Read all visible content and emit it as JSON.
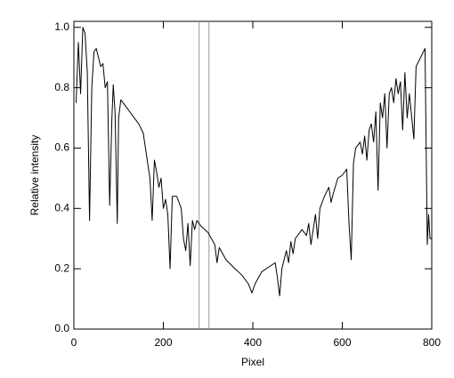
{
  "chart_data": {
    "type": "line",
    "xlabel": "Pixel",
    "ylabel": "Relative intensity",
    "x": [
      5,
      10,
      15,
      20,
      25,
      30,
      35,
      40,
      45,
      50,
      55,
      60,
      65,
      70,
      75,
      80,
      85,
      88,
      92,
      97,
      100,
      105,
      115,
      130,
      145,
      155,
      160,
      165,
      170,
      175,
      180,
      185,
      190,
      195,
      200,
      205,
      210,
      215,
      220,
      230,
      240,
      245,
      250,
      255,
      260,
      265,
      270,
      275,
      285,
      300,
      315,
      320,
      325,
      340,
      360,
      375,
      390,
      398,
      405,
      420,
      440,
      450,
      455,
      460,
      465,
      475,
      480,
      485,
      490,
      495,
      505,
      510,
      520,
      525,
      530,
      540,
      545,
      550,
      560,
      570,
      575,
      580,
      590,
      600,
      610,
      615,
      620,
      625,
      630,
      640,
      645,
      650,
      655,
      660,
      665,
      670,
      675,
      680,
      685,
      690,
      695,
      700,
      705,
      710,
      715,
      720,
      725,
      730,
      735,
      740,
      745,
      750,
      760,
      765,
      775,
      785,
      790,
      793,
      796,
      800
    ],
    "values": [
      0.75,
      0.95,
      0.78,
      1.0,
      0.98,
      0.85,
      0.36,
      0.8,
      0.92,
      0.93,
      0.9,
      0.87,
      0.88,
      0.8,
      0.82,
      0.41,
      0.7,
      0.81,
      0.72,
      0.35,
      0.7,
      0.76,
      0.74,
      0.71,
      0.68,
      0.65,
      0.6,
      0.55,
      0.5,
      0.36,
      0.56,
      0.52,
      0.47,
      0.5,
      0.4,
      0.43,
      0.38,
      0.2,
      0.44,
      0.44,
      0.4,
      0.3,
      0.26,
      0.35,
      0.21,
      0.36,
      0.33,
      0.36,
      0.34,
      0.32,
      0.28,
      0.22,
      0.27,
      0.23,
      0.2,
      0.18,
      0.15,
      0.12,
      0.15,
      0.19,
      0.21,
      0.22,
      0.17,
      0.11,
      0.2,
      0.26,
      0.22,
      0.29,
      0.25,
      0.3,
      0.32,
      0.33,
      0.31,
      0.35,
      0.28,
      0.38,
      0.3,
      0.4,
      0.44,
      0.47,
      0.42,
      0.45,
      0.5,
      0.51,
      0.53,
      0.35,
      0.23,
      0.55,
      0.6,
      0.62,
      0.58,
      0.64,
      0.56,
      0.66,
      0.68,
      0.62,
      0.72,
      0.46,
      0.75,
      0.7,
      0.78,
      0.6,
      0.78,
      0.8,
      0.75,
      0.83,
      0.78,
      0.82,
      0.66,
      0.85,
      0.7,
      0.78,
      0.63,
      0.87,
      0.9,
      0.93,
      0.28,
      0.38,
      0.3,
      0.3
    ],
    "color": "#000000",
    "vlines": [
      280,
      302
    ],
    "vline_color": "#999999",
    "xlim": [
      0,
      800
    ],
    "xticks": [
      0,
      200,
      400,
      600,
      800
    ],
    "ylim": [
      0,
      1.02
    ],
    "yticks": [
      {
        "value": 0,
        "label": "0.0"
      },
      0.2,
      0.4,
      0.6,
      0.8,
      {
        "value": 1,
        "label": "1.0"
      }
    ]
  }
}
